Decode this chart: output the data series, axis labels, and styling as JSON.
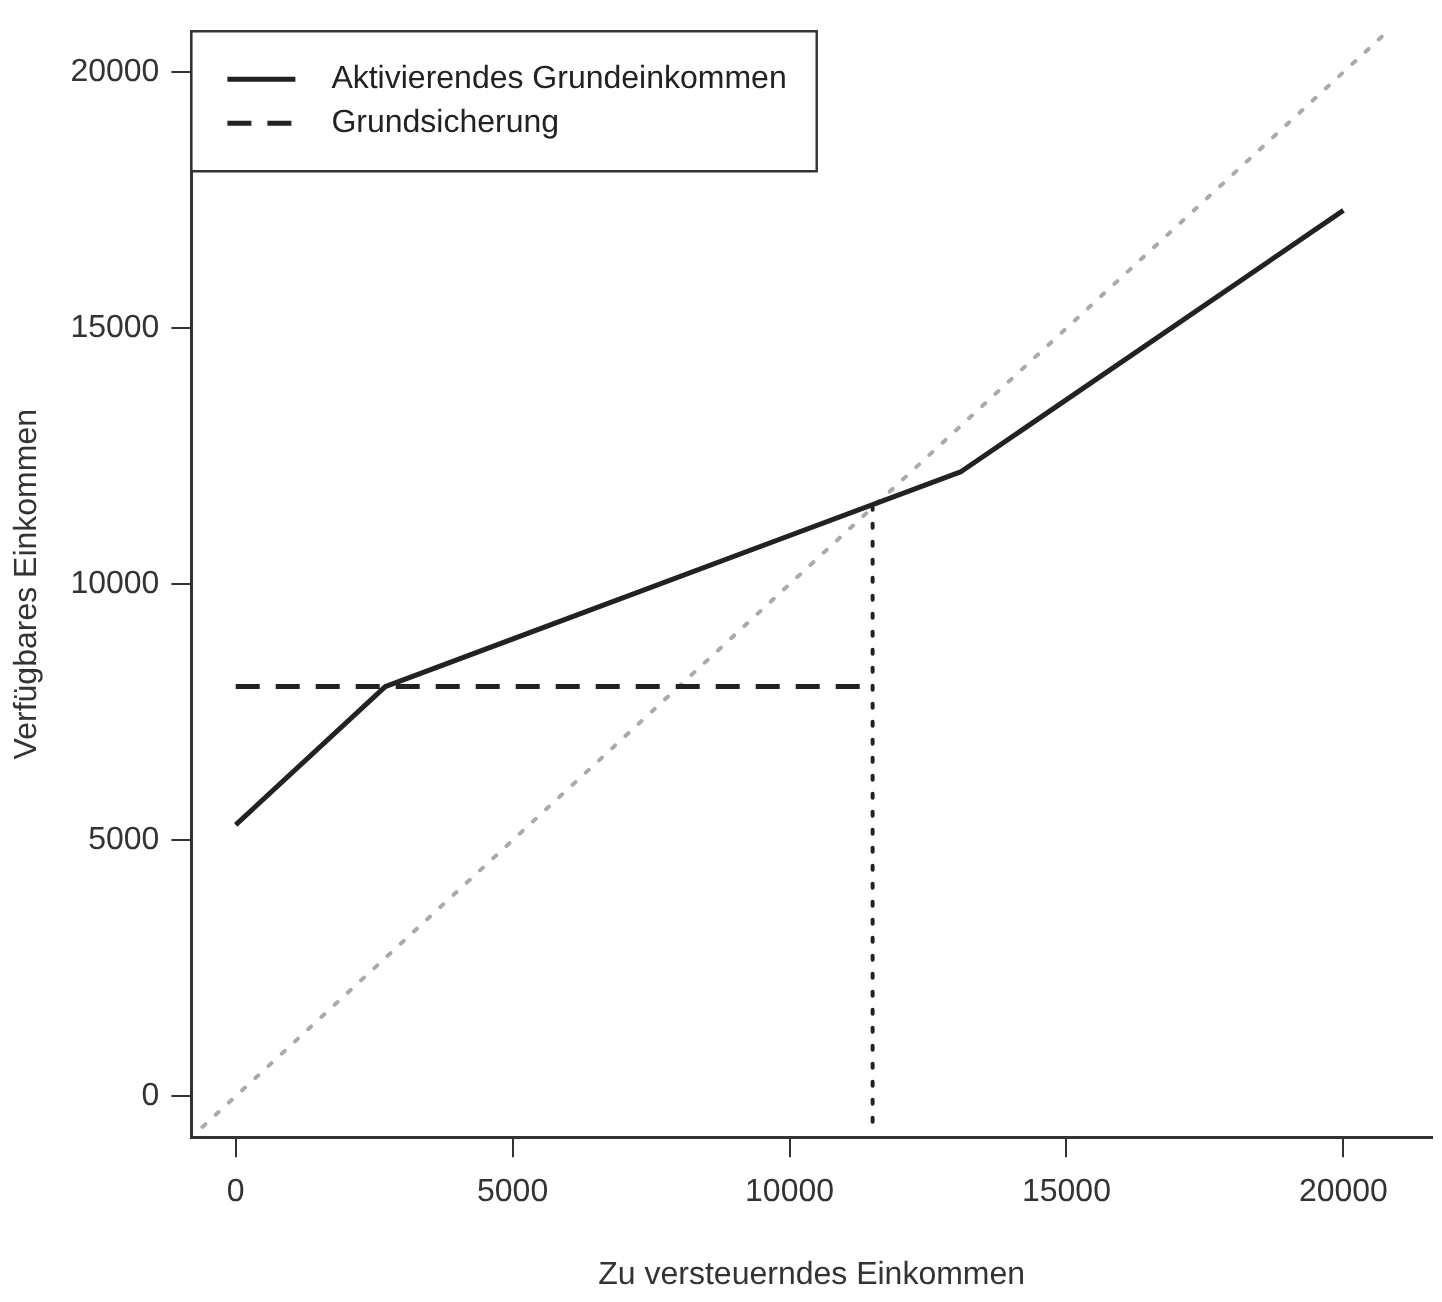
{
  "chart_data": {
    "type": "line",
    "xlabel": "Zu versteuerndes Einkommen",
    "ylabel": "Verfügbares Einkommen",
    "xlim": [
      -800,
      21600
    ],
    "ylim": [
      -800,
      20800
    ],
    "xticks": [
      0,
      5000,
      10000,
      15000,
      20000
    ],
    "yticks": [
      0,
      5000,
      10000,
      15000,
      20000
    ],
    "legend": "top left",
    "marker": "none",
    "series": [
      {
        "name": "Aktivierendes Grundeinkommen",
        "color": "#222222",
        "x": [
          0,
          2700,
          13100,
          20000
        ],
        "values": [
          5300,
          8000,
          12200,
          17300
        ],
        "line_style": "solid"
      },
      {
        "name": "Grundsicherung",
        "color": "#222222",
        "x": [
          0,
          11500
        ],
        "values": [
          8000,
          8000
        ],
        "line_style": "dashed"
      },
      {
        "color": "#222222",
        "x": [
          11500,
          11500
        ],
        "values": [
          -500,
          11500
        ],
        "line_style": "dotted"
      },
      {
        "color": "#aaaaaa",
        "x": [
          -600,
          20800
        ],
        "values": [
          -600,
          20800
        ],
        "line_style": "dotted"
      }
    ]
  }
}
